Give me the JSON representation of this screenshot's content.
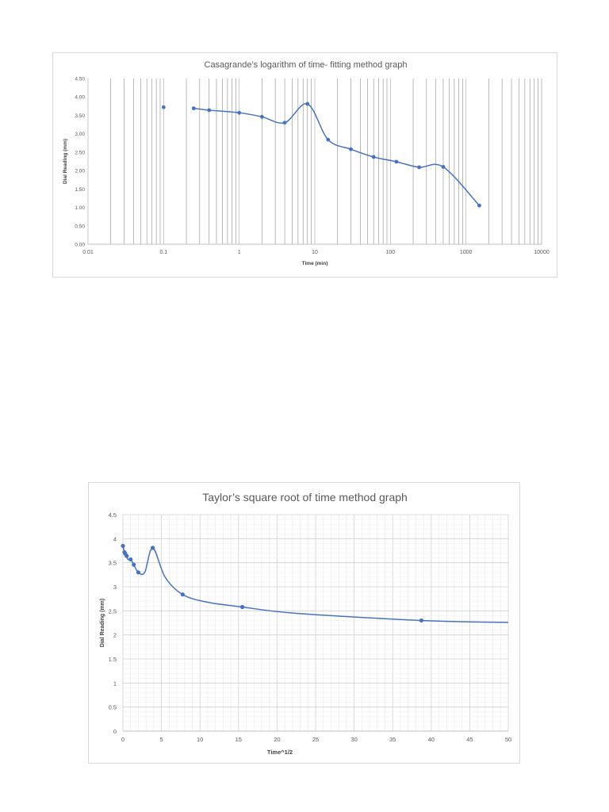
{
  "chart_data": [
    {
      "type": "scatter",
      "title": "Casagrande’s logarithm of time- fitting method graph",
      "xlabel": "Time (min)",
      "ylabel": "Dial Reading (mm)",
      "x_scale": "log",
      "xlim": [
        0.01,
        10000
      ],
      "ylim": [
        0,
        4.5
      ],
      "x_tick_labels": [
        "0.01",
        "0.1",
        "1",
        "10",
        "100",
        "1000",
        "10000"
      ],
      "y_tick_labels": [
        "0.00",
        "0.50",
        "1.00",
        "1.50",
        "2.00",
        "2.50",
        "3.00",
        "3.50",
        "4.00",
        "4.50"
      ],
      "grid": "vertical minor and major gridlines",
      "smoothed_line": true,
      "series_color": "#4472c4",
      "series": [
        {
          "x": [
            0.1,
            0.25,
            0.4,
            1,
            2,
            4,
            8,
            15,
            30,
            60,
            120,
            240,
            500,
            1500
          ],
          "y": [
            3.72,
            3.69,
            3.64,
            3.57,
            3.46,
            3.3,
            3.81,
            2.84,
            2.58,
            2.37,
            2.24,
            2.09,
            2.1,
            1.05
          ],
          "line_from_index": 1
        }
      ]
    },
    {
      "type": "scatter",
      "title": "Taylor’s  square root of time method graph",
      "xlabel": "Time^1/2",
      "ylabel": "Dial Reading (mm)",
      "xlim": [
        0,
        50
      ],
      "ylim": [
        0,
        4.5
      ],
      "x_tick_labels": [
        "0",
        "5",
        "10",
        "15",
        "20",
        "25",
        "30",
        "35",
        "40",
        "45",
        "50"
      ],
      "y_tick_labels": [
        "0",
        "0.5",
        "1",
        "1.5",
        "2",
        "2.5",
        "3",
        "3.5",
        "4",
        "4.5"
      ],
      "grid": "major and minor gridlines",
      "smoothed_line": true,
      "series_color": "#4472c4",
      "series": [
        {
          "x": [
            0,
            0.2,
            0.3,
            0.5,
            0.63,
            1,
            1.41,
            2,
            2.83,
            3.87,
            5.48,
            7.75,
            10.95,
            15.49,
            22.36,
            38.73,
            50
          ],
          "y": [
            3.85,
            3.72,
            3.69,
            3.64,
            3.57,
            3.57,
            3.46,
            3.3,
            3.3,
            3.81,
            3.2,
            2.84,
            2.68,
            2.58,
            2.45,
            2.3,
            2.26
          ],
          "marker_indices": [
            0,
            1,
            2,
            3,
            5,
            6,
            7,
            9,
            11,
            13,
            15
          ]
        }
      ]
    }
  ]
}
